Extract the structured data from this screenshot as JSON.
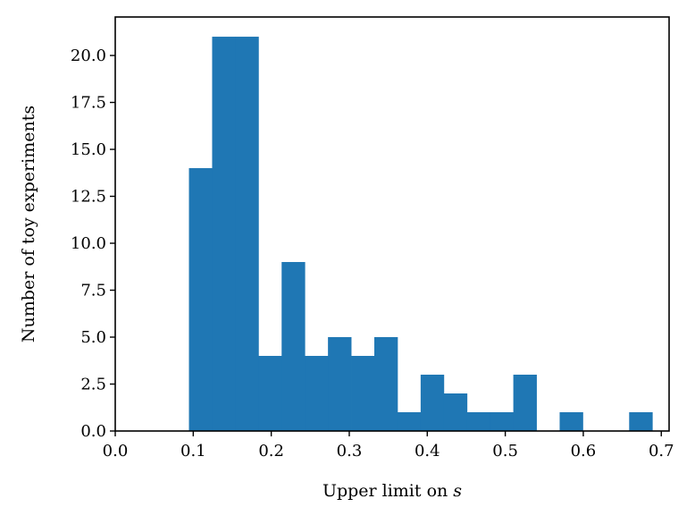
{
  "chart_data": {
    "type": "bar",
    "title": "",
    "xlabel": "Upper limit on ",
    "xlabel_var": "s",
    "ylabel": "Number of toy experiments",
    "bin_edges": [
      0.0945,
      0.1242,
      0.1539,
      0.1836,
      0.2133,
      0.243,
      0.2727,
      0.3024,
      0.3321,
      0.3618,
      0.3915,
      0.4212,
      0.4509,
      0.4806,
      0.5103,
      0.54,
      0.5697,
      0.5994,
      0.6291,
      0.6588,
      0.6885
    ],
    "values": [
      14,
      21,
      21,
      4,
      9,
      4,
      5,
      4,
      5,
      1,
      3,
      2,
      1,
      1,
      3,
      0,
      1,
      0,
      0,
      1
    ],
    "xlim": [
      0.0,
      0.71
    ],
    "ylim": [
      0.0,
      22.05
    ],
    "xticks": [
      0.0,
      0.1,
      0.2,
      0.3,
      0.4,
      0.5,
      0.6,
      0.7
    ],
    "xtick_labels": [
      "0.0",
      "0.1",
      "0.2",
      "0.3",
      "0.4",
      "0.5",
      "0.6",
      "0.7"
    ],
    "yticks": [
      0.0,
      2.5,
      5.0,
      7.5,
      10.0,
      12.5,
      15.0,
      17.5,
      20.0
    ],
    "ytick_labels": [
      "0.0",
      "2.5",
      "5.0",
      "7.5",
      "10.0",
      "12.5",
      "15.0",
      "17.5",
      "20.0"
    ],
    "grid": false,
    "bar_color": "#1f77b4"
  }
}
